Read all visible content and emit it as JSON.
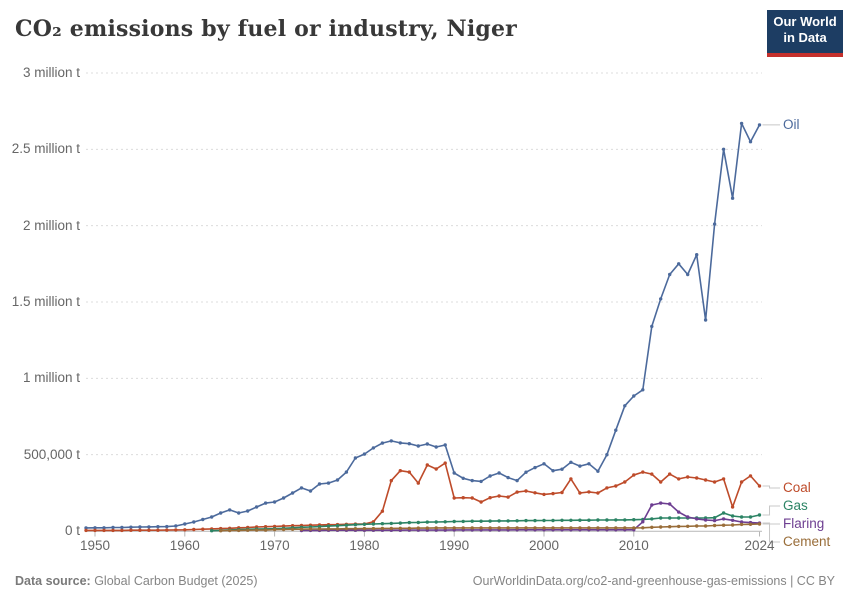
{
  "header": {
    "title": "CO₂ emissions by fuel or industry, Niger",
    "logo_line1": "Our World",
    "logo_line2": "in Data"
  },
  "footer": {
    "source_label": "Data source:",
    "source_value": " Global Carbon Budget (2025)",
    "citation": "OurWorldinData.org/co2-and-greenhouse-gas-emissions | CC BY"
  },
  "chart_data": {
    "type": "line",
    "title": "CO₂ emissions by fuel or industry, Niger",
    "unit": "tonnes",
    "values_unit_note": "values stored in thousand tonnes (kt)",
    "ylim_kt": [
      0,
      3000
    ],
    "grid": "horizontal-dashed",
    "legend_position": "right-end-labels",
    "y_ticks": [
      {
        "v": 0,
        "label": "0 t"
      },
      {
        "v": 500,
        "label": "500,000 t"
      },
      {
        "v": 1000,
        "label": "1 million t"
      },
      {
        "v": 1500,
        "label": "1.5 million t"
      },
      {
        "v": 2000,
        "label": "2 million t"
      },
      {
        "v": 2500,
        "label": "2.5 million t"
      },
      {
        "v": 3000,
        "label": "3 million t"
      }
    ],
    "x_ticks": [
      {
        "year": 1950,
        "label": "1950"
      },
      {
        "year": 1960,
        "label": "1960"
      },
      {
        "year": 1970,
        "label": "1970"
      },
      {
        "year": 1980,
        "label": "1980"
      },
      {
        "year": 1990,
        "label": "1990"
      },
      {
        "year": 2000,
        "label": "2000"
      },
      {
        "year": 2010,
        "label": "2010"
      },
      {
        "year": 2024,
        "label": "2024"
      }
    ],
    "series": [
      {
        "name": "Oil",
        "color": "#4C6A9C",
        "start_year": 1949,
        "values_kt": [
          20,
          21,
          21,
          23,
          23,
          25,
          26,
          27,
          28,
          29,
          33,
          46,
          59,
          75,
          92,
          118,
          138,
          118,
          131,
          157,
          183,
          190,
          216,
          249,
          282,
          262,
          308,
          314,
          334,
          386,
          478,
          504,
          544,
          576,
          590,
          577,
          572,
          557,
          570,
          550,
          563,
          380,
          345,
          330,
          325,
          360,
          380,
          350,
          330,
          385,
          415,
          440,
          395,
          405,
          450,
          425,
          440,
          392,
          500,
          660,
          820,
          884,
          925,
          1340,
          1520,
          1680,
          1750,
          1680,
          1810,
          1382,
          2010,
          2500,
          2180,
          2670,
          2550,
          2660
        ]
      },
      {
        "name": "Coal",
        "color": "#BE4B2A",
        "start_year": 1949,
        "values_kt": [
          4,
          4,
          4,
          4,
          4,
          5,
          5,
          5,
          5,
          6,
          7,
          8,
          10,
          12,
          14,
          16,
          18,
          21,
          23,
          26,
          28,
          30,
          32,
          35,
          36,
          38,
          40,
          41,
          42,
          44,
          45,
          46,
          60,
          130,
          330,
          395,
          386,
          314,
          432,
          406,
          445,
          216,
          218,
          216,
          190,
          218,
          229,
          222,
          255,
          262,
          250,
          240,
          245,
          252,
          341,
          249,
          256,
          249,
          282,
          295,
          321,
          367,
          386,
          373,
          321,
          373,
          341,
          354,
          347,
          334,
          321,
          341,
          157,
          321,
          361,
          295
        ]
      },
      {
        "name": "Gas",
        "color": "#2C8465",
        "start_year": 1963,
        "values_kt": [
          2,
          4,
          7,
          9,
          11,
          13,
          14,
          15,
          18,
          21,
          24,
          26,
          29,
          32,
          35,
          38,
          41,
          44,
          46,
          48,
          50,
          52,
          55,
          56,
          58,
          59,
          60,
          62,
          63,
          64,
          64,
          65,
          66,
          66,
          67,
          68,
          68,
          69,
          69,
          70,
          70,
          71,
          71,
          72,
          72,
          73,
          73,
          74,
          76,
          79,
          85,
          85,
          85,
          85,
          85,
          85,
          87,
          118,
          98,
          92,
          92,
          105
        ]
      },
      {
        "name": "Flaring",
        "color": "#6D3E91",
        "start_year": 1973,
        "values_kt": [
          3,
          4,
          4,
          5,
          5,
          5,
          5,
          5,
          5,
          5,
          5,
          5,
          6,
          6,
          6,
          6,
          6,
          7,
          7,
          7,
          7,
          7,
          7,
          7,
          8,
          8,
          8,
          8,
          8,
          8,
          8,
          8,
          8,
          8,
          8,
          8,
          8,
          8,
          60,
          170,
          183,
          177,
          124,
          92,
          79,
          72,
          68,
          79,
          70,
          59,
          55,
          52
        ]
      },
      {
        "name": "Cement",
        "color": "#996D39",
        "start_year": 1964,
        "values_kt": [
          2,
          3,
          4,
          5,
          6,
          6,
          9,
          10,
          11,
          12,
          13,
          13,
          14,
          14,
          15,
          15,
          16,
          16,
          17,
          17,
          18,
          18,
          19,
          19,
          20,
          20,
          20,
          20,
          20,
          20,
          20,
          20,
          20,
          20,
          20,
          20,
          20,
          20,
          20,
          20,
          20,
          20,
          20,
          20,
          20,
          20,
          20,
          21,
          24,
          26,
          28,
          30,
          31,
          33,
          33,
          36,
          38,
          39,
          43,
          44,
          46
        ]
      }
    ]
  }
}
